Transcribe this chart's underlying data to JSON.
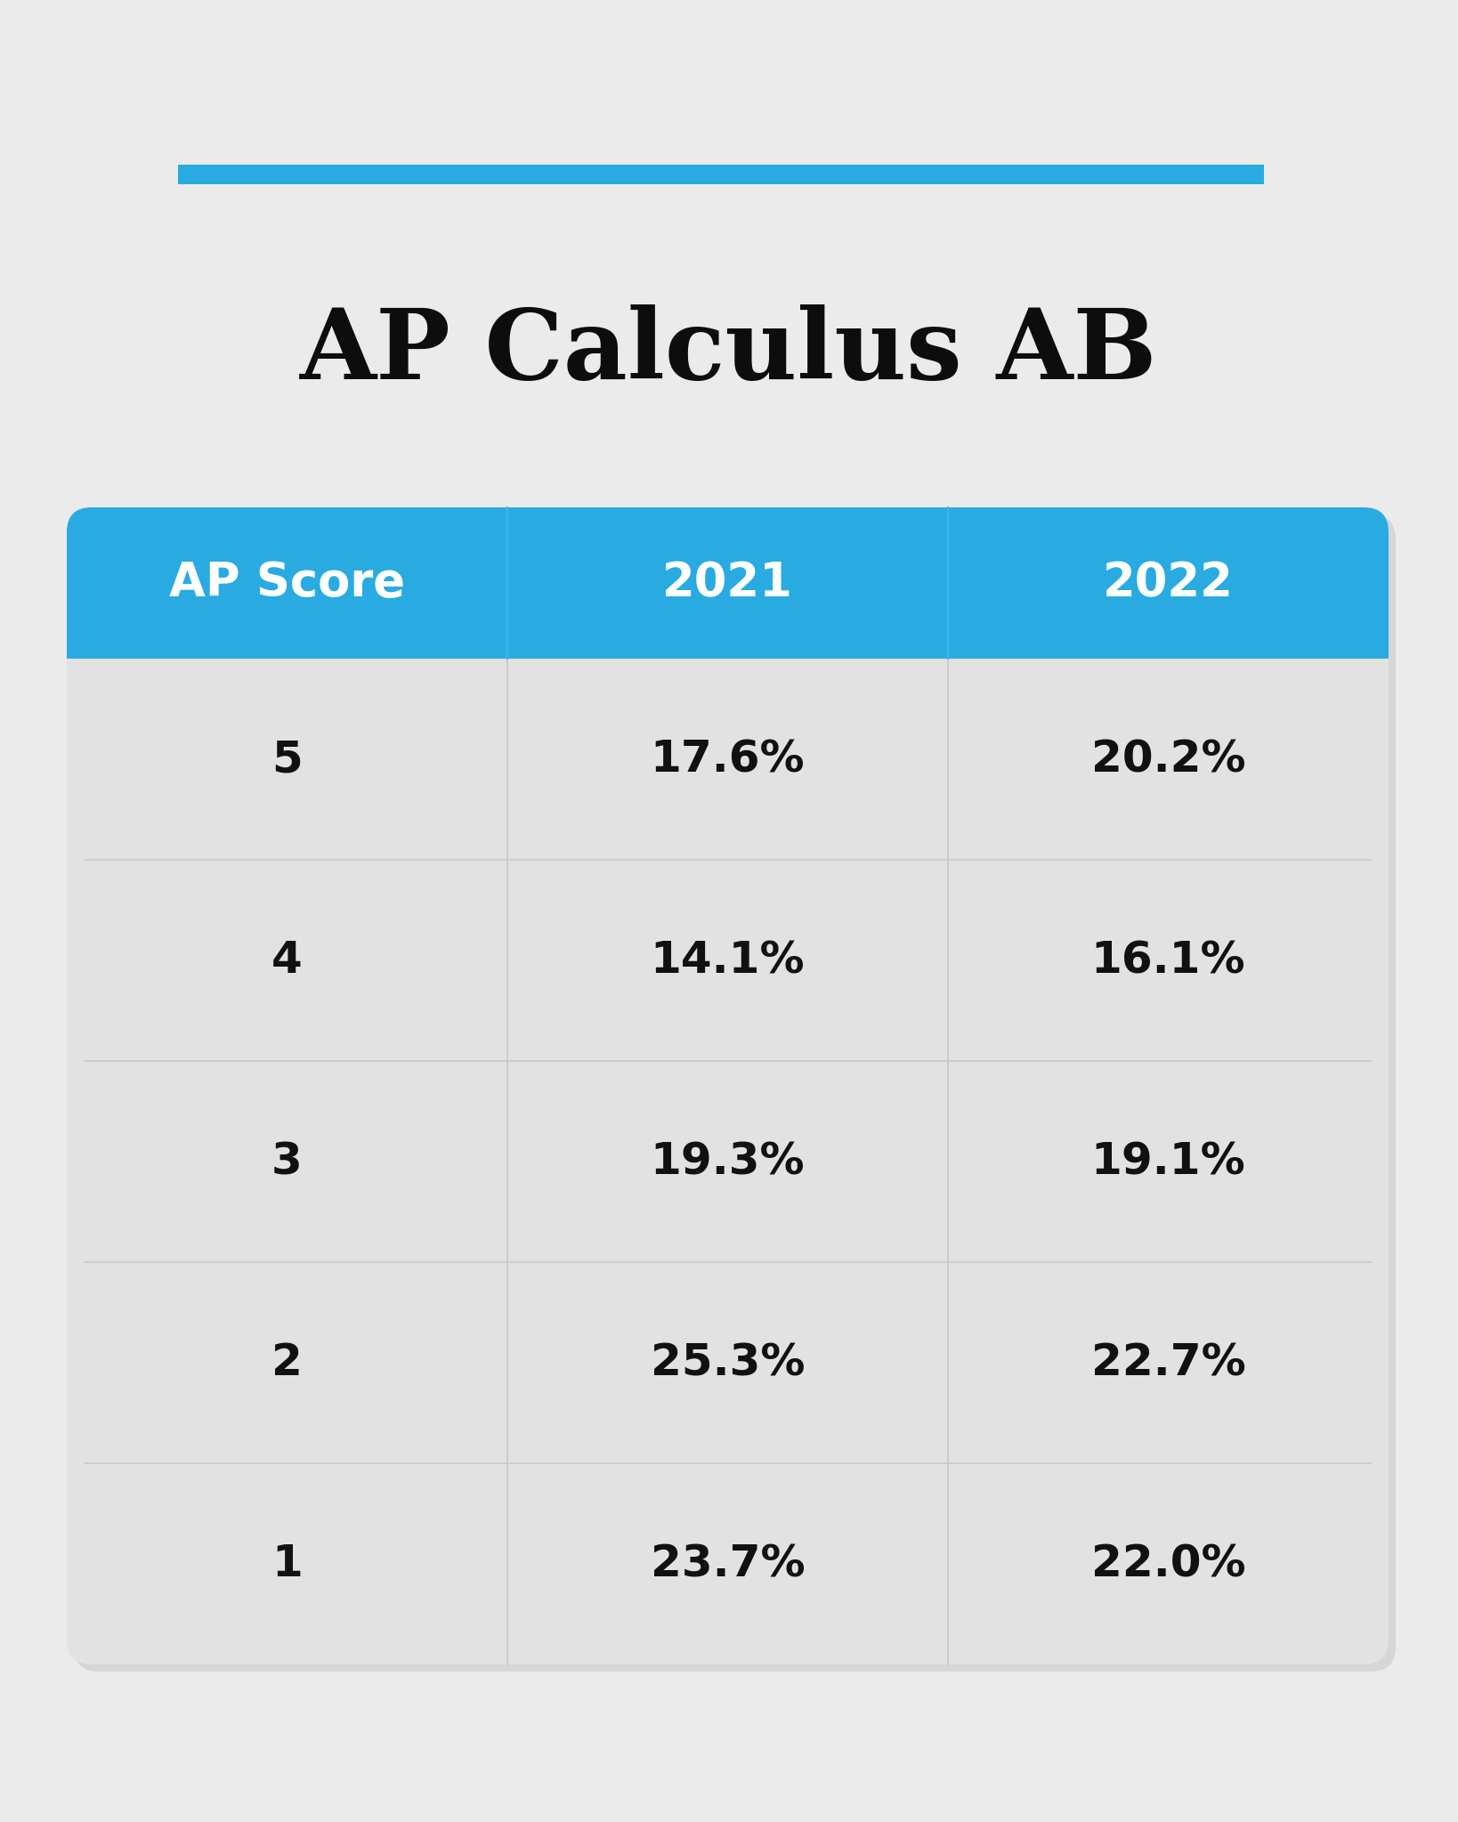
{
  "title": "AP Calculus AB",
  "title_fontsize": 80,
  "title_fontweight": "bold",
  "title_color": "#0d0d0d",
  "accent_bar_color": "#29ABE2",
  "background_color": "#EBEBEB",
  "table_bg_color": "#E2E2E2",
  "header_background": "#29ABE2",
  "header_text_color": "#FFFFFF",
  "header_fontsize": 38,
  "header_fontweight": "bold",
  "cell_text_color": "#111111",
  "cell_fontsize": 36,
  "cell_fontweight": "bold",
  "divider_color": "#C8C8C8",
  "headers": [
    "AP Score",
    "2021",
    "2022"
  ],
  "rows": [
    [
      "5",
      "17.6%",
      "20.2%"
    ],
    [
      "4",
      "14.1%",
      "16.1%"
    ],
    [
      "3",
      "19.3%",
      "19.1%"
    ],
    [
      "2",
      "25.3%",
      "22.7%"
    ],
    [
      "1",
      "23.7%",
      "22.0%"
    ]
  ]
}
